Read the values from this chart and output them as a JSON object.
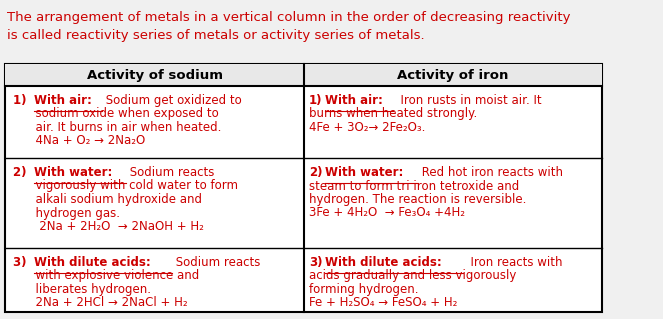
{
  "intro_text": "The arrangement of metals in a vertical column in the order of decreasing reactivity\nis called reactivity series of metals or activity series of metals.",
  "intro_color": "#cc0000",
  "header_left": "Activity of sodium",
  "header_right": "Activity of iron",
  "header_color": "#000000",
  "table_border_color": "#000000",
  "bg_color": "#f0f0f0",
  "cell_bg": "#ffffff",
  "text_color": "#cc0000",
  "bold_underline_color": "#000000",
  "font_size": 8.5,
  "header_font_size": 9.5,
  "intro_font_size": 9.5,
  "rows": [
    {
      "left_lines": [
        {
          "text": "1) ",
          "bold": true,
          "underline": false
        },
        {
          "text": "With air:",
          "bold": true,
          "underline": true
        },
        {
          "text": " Sodium get oxidized to",
          "bold": false,
          "underline": false
        }
      ],
      "left_extra": [
        "      sodium oxide when exposed to",
        "      air. It burns in air when heated.",
        "      4Na + O₂ → 2Na₂O"
      ],
      "right_lines": [
        {
          "text": "1)",
          "bold": true,
          "underline": false
        },
        {
          "text": "With air:",
          "bold": true,
          "underline": true
        },
        {
          "text": "  Iron rusts in moist air. It",
          "bold": false,
          "underline": false
        }
      ],
      "right_extra": [
        "burns when heated strongly.",
        "4Fe + 3O₂→ 2Fe₂O₃."
      ]
    },
    {
      "left_lines": [
        {
          "text": "2) ",
          "bold": true,
          "underline": false
        },
        {
          "text": "With water:",
          "bold": true,
          "underline": true
        },
        {
          "text": " Sodium reacts",
          "bold": false,
          "underline": false
        }
      ],
      "left_extra": [
        "      vigorously with cold water to form",
        "      alkali sodium hydroxide and",
        "      hydrogen gas.",
        "       2Na + 2H₂O  → 2NaOH + H₂"
      ],
      "right_lines": [
        {
          "text": "2)",
          "bold": true,
          "underline": false
        },
        {
          "text": "With water:",
          "bold": true,
          "underline": true
        },
        {
          "text": " Red hot iron reacts with",
          "bold": false,
          "underline": false
        }
      ],
      "right_extra": [
        "steam to form tri iron tetroxide and",
        "hydrogen. The reaction is reversible.",
        "3Fe + 4H₂O  → Fe₃O₄ +4H₂"
      ]
    },
    {
      "left_lines": [
        {
          "text": "3) ",
          "bold": true,
          "underline": false
        },
        {
          "text": "With dilute acids:",
          "bold": true,
          "underline": true
        },
        {
          "text": " Sodium reacts",
          "bold": false,
          "underline": false
        }
      ],
      "left_extra": [
        "      with explosive violence and",
        "      liberates hydrogen.",
        "      2Na + 2HCl → 2NaCl + H₂"
      ],
      "right_lines": [
        {
          "text": "3)",
          "bold": true,
          "underline": false
        },
        {
          "text": "With dilute acids:",
          "bold": true,
          "underline": true
        },
        {
          "text": "  Iron reacts with",
          "bold": false,
          "underline": false
        }
      ],
      "right_extra": [
        "acids gradually and less vigorously",
        "forming hydrogen.",
        "Fe + H₂SO₄ → FeSO₄ + H₂"
      ]
    }
  ]
}
